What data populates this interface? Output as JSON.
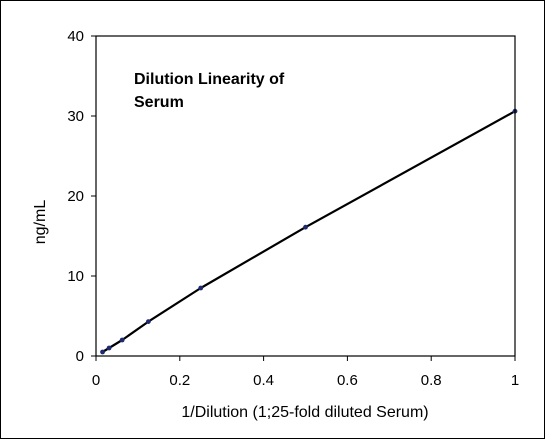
{
  "chart_data": {
    "type": "line",
    "title_lines": [
      "Dilution Linearity of",
      "Serum"
    ],
    "xlabel": "1/Dilution (1;25-fold diluted Serum)",
    "ylabel": "ng/mL",
    "xlim": [
      0,
      1
    ],
    "ylim": [
      0,
      40
    ],
    "x_ticks": [
      0,
      0.2,
      0.4,
      0.6,
      0.8,
      1
    ],
    "y_ticks": [
      0,
      10,
      20,
      30,
      40
    ],
    "grid": false,
    "legend": "none",
    "line_color": "#000000",
    "marker_color": "#1f2a6e",
    "series": [
      {
        "x": [
          0.015625,
          0.03125,
          0.0625,
          0.125,
          0.25,
          0.5,
          1
        ],
        "y": [
          0.5,
          1.0,
          2.0,
          4.3,
          8.5,
          16.1,
          30.6
        ]
      }
    ]
  }
}
